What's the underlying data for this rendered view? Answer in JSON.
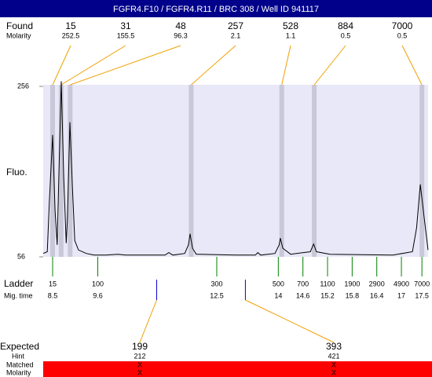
{
  "header": {
    "title": "FGFR4.F10 / FGFR4.R11 / BRC 308 / Well ID 941117"
  },
  "found": {
    "label": "Found",
    "molarity_label": "Molarity",
    "sizes": [
      15,
      31,
      48,
      257,
      528,
      884,
      7000
    ],
    "molarity": [
      252.5,
      155.5,
      96.3,
      2.1,
      1.1,
      0.5,
      0.5
    ]
  },
  "ladder": {
    "label": "Ladder",
    "time_label": "Mig. time",
    "sizes": [
      15,
      100,
      300,
      500,
      700,
      1100,
      1900,
      2900,
      4900,
      7000
    ],
    "times": [
      8.5,
      9.6,
      12.5,
      14,
      14.6,
      15.2,
      15.8,
      16.4,
      17,
      17.5
    ]
  },
  "expected": {
    "label": "Expected",
    "values": [
      199,
      393
    ],
    "hint_label": "Hint",
    "hints": [
      212,
      421
    ],
    "matched_label": "Matched",
    "matched": [
      "X",
      "X"
    ],
    "molarity_label": "Molarity",
    "molarity": [
      "X",
      "X"
    ]
  },
  "chart_data": {
    "type": "line",
    "y_label": "Fluo.",
    "color": "#000000",
    "x": [
      8.27,
      8.37,
      8.42,
      8.5,
      8.56,
      8.61,
      8.65,
      8.71,
      8.77,
      8.83,
      8.86,
      8.92,
      8.98,
      9.04,
      9.13,
      9.32,
      9.51,
      9.8,
      10.09,
      10.28,
      11.05,
      11.24,
      11.33,
      11.43,
      11.72,
      11.81,
      11.85,
      11.91,
      12.0,
      12.96,
      13.44,
      13.5,
      13.57,
      13.92,
      14.02,
      14.05,
      14.11,
      14.3,
      14.78,
      14.86,
      14.93,
      15.26,
      16.79,
      17.27,
      17.37,
      17.46,
      17.56,
      17.65
    ],
    "values": [
      60,
      62,
      120,
      199,
      110,
      70,
      150,
      262,
      150,
      72,
      100,
      214,
      140,
      75,
      64,
      60,
      58,
      58,
      59,
      58,
      58,
      58,
      61,
      58,
      60,
      70,
      83,
      66,
      59,
      58,
      58,
      61,
      58,
      60,
      70,
      78,
      66,
      59,
      62,
      71,
      62,
      59,
      58,
      62,
      90,
      141,
      100,
      64
    ],
    "xlim": [
      8.27,
      17.65
    ],
    "ylim": [
      56,
      256
    ],
    "yticks": [
      56,
      256
    ]
  }
}
